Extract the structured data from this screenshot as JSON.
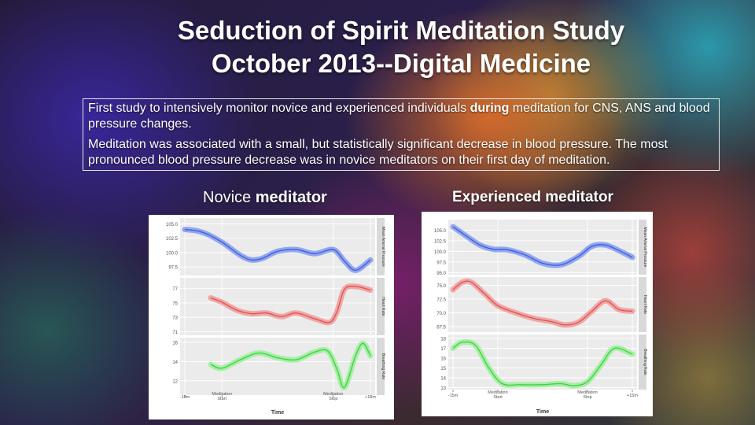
{
  "slide": {
    "title_line1": "Seduction of Spirit Meditation Study",
    "title_line2": "October 2013--Digital Medicine",
    "summary_p1_before": "First study to intensively monitor novice and experienced individuals ",
    "summary_p1_bold": "during",
    "summary_p1_after": " meditation for CNS, ANS and blood pressure changes.",
    "summary_p2": "Meditation was associated with a small, but statistically significant decrease in blood pressure. The most pronounced blood pressure decrease was in novice meditators on their first day of meditation.",
    "novice_heading_plain": "Novice ",
    "novice_heading_bold": "meditator",
    "experienced_heading": "Experienced meditator"
  },
  "colors": {
    "map": "#3b5bdb",
    "hr": "#e05050",
    "br": "#3fcf3f",
    "map_band": "#8aa0ee",
    "hr_band": "#f0a0a0",
    "br_band": "#9ef09e",
    "panel_bg": "#ebebeb",
    "strip_bg": "#d9d9d9"
  },
  "chart_data": [
    {
      "type": "line",
      "xlabel": "Time",
      "x_ticks": [
        "-10m",
        "Meditation\nStart",
        "Meditation\nStop",
        "+10m"
      ],
      "x_tick_positions": [
        0,
        1,
        4,
        5
      ],
      "xlim": [
        0,
        5
      ],
      "panels": [
        {
          "strip": "Mean Arterial Pressure",
          "series": "map",
          "yticks": [
            97.5,
            100.0,
            102.5,
            105.0
          ],
          "ylim": [
            96,
            106
          ],
          "x": [
            0,
            0.3,
            0.6,
            1.0,
            1.5,
            1.8,
            2.1,
            2.5,
            3.0,
            3.5,
            4.0,
            4.3,
            4.6,
            5.0
          ],
          "y": [
            104.0,
            103.8,
            103.2,
            101.8,
            99.5,
            98.7,
            99.0,
            100.2,
            100.5,
            99.8,
            100.5,
            98.5,
            96.9,
            98.7
          ]
        },
        {
          "strip": "Heart Rate",
          "series": "hr",
          "yticks": [
            71,
            73,
            75,
            77
          ],
          "ylim": [
            70.5,
            78.5
          ],
          "x": [
            0.7,
            1.0,
            1.4,
            1.8,
            2.2,
            2.6,
            3.0,
            3.5,
            3.9,
            4.1,
            4.3,
            4.6,
            5.0
          ],
          "y": [
            75.7,
            75.1,
            74.0,
            73.5,
            73.6,
            73.1,
            73.6,
            72.8,
            72.3,
            73.8,
            76.9,
            77.3,
            76.8
          ]
        },
        {
          "strip": "Breathing Rate",
          "series": "br",
          "yticks": [
            12,
            14,
            16
          ],
          "ylim": [
            10.5,
            16.5
          ],
          "x": [
            0.7,
            1.0,
            1.5,
            2.0,
            2.5,
            3.0,
            3.5,
            3.85,
            4.1,
            4.3,
            4.6,
            4.8,
            5.0
          ],
          "y": [
            13.7,
            13.3,
            14.2,
            14.9,
            14.4,
            14.2,
            15.0,
            15.1,
            13.2,
            11.3,
            14.6,
            15.9,
            14.6
          ]
        }
      ]
    },
    {
      "type": "line",
      "xlabel": "Time",
      "x_ticks": [
        "-15m",
        "Meditation\nStart",
        "Meditation\nStop",
        "+15m"
      ],
      "x_tick_positions": [
        0,
        1,
        3,
        4
      ],
      "xlim": [
        0,
        4
      ],
      "panels": [
        {
          "strip": "Mean Arterial Pressure",
          "series": "map",
          "yticks": [
            95.0,
            97.5,
            100.0,
            102.5,
            105.0
          ],
          "ylim": [
            94.5,
            107.5
          ],
          "x": [
            0,
            0.3,
            0.6,
            0.9,
            1.2,
            1.6,
            2.0,
            2.4,
            2.8,
            3.1,
            3.4,
            3.7,
            4.0
          ],
          "y": [
            105.8,
            103.6,
            101.5,
            100.5,
            100.4,
            99.2,
            97.2,
            96.8,
            98.8,
            101.2,
            101.5,
            100.2,
            98.6
          ]
        },
        {
          "strip": "Heart Rate",
          "series": "hr",
          "yticks": [
            67.5,
            70.0,
            72.5,
            75.0
          ],
          "ylim": [
            66.5,
            76.5
          ],
          "x": [
            0,
            0.2,
            0.4,
            0.7,
            1.0,
            1.4,
            1.8,
            2.2,
            2.5,
            2.8,
            3.1,
            3.4,
            3.7,
            4.0
          ],
          "y": [
            74.2,
            75.5,
            75.6,
            73.5,
            71.3,
            70.0,
            69.0,
            68.4,
            67.8,
            68.3,
            70.3,
            72.2,
            70.6,
            70.3
          ]
        },
        {
          "strip": "Breathing Rate",
          "series": "br",
          "yticks": [
            13,
            14,
            15,
            16,
            17,
            18
          ],
          "ylim": [
            12.8,
            18.4
          ],
          "x": [
            0,
            0.2,
            0.5,
            0.8,
            1.1,
            1.5,
            2.0,
            2.4,
            2.7,
            3.0,
            3.3,
            3.6,
            4.0
          ],
          "y": [
            17.0,
            17.6,
            17.3,
            15.0,
            13.4,
            13.3,
            13.3,
            13.4,
            13.2,
            13.6,
            15.3,
            17.0,
            16.4
          ]
        }
      ]
    }
  ]
}
